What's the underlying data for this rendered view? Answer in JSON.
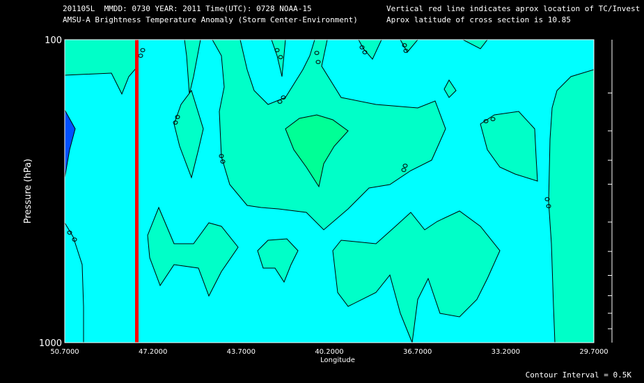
{
  "header": {
    "line1": "201105L  MMDD: 0730 YEAR: 2011 Time(UTC): 0728 NOAA-15",
    "line2": "AMSU-A Brightness Temperature Anomaly (Storm Center-Environment)",
    "line3": "Vertical red line indicates aprox location of TC/Invest",
    "line4": "Aprox latitude of cross section is 10.85"
  },
  "footer": {
    "contour_interval": "Contour Interval = 0.5K"
  },
  "chart_data": {
    "type": "contour",
    "title": "AMSU-A Brightness Temperature Anomaly (Storm Center-Environment)",
    "xlabel": "Longitude",
    "ylabel": "Pressure (hPa)",
    "xlim": [
      50.7,
      29.7
    ],
    "ylim": [
      1000,
      100
    ],
    "y_scale": "log",
    "x_ticks": [
      "50.7000",
      "47.2000",
      "43.7000",
      "40.2000",
      "36.7000",
      "33.2000",
      "29.7000"
    ],
    "y_ticks": [
      "100",
      "1000"
    ],
    "y_minor_ticks": [
      150,
      200,
      250,
      300,
      400,
      500,
      600,
      700,
      800,
      900
    ],
    "contour_interval": 0.5,
    "contour_labels": "0.0",
    "tc_location_longitude": 47.9,
    "colors": {
      "background": "#00ffff",
      "level_low": "#0050ff",
      "level_zero_plus": "#00ffc8",
      "level_high": "#00ff96",
      "tc_line": "#ff0000",
      "plot_right_band": "#00ffc8"
    }
  }
}
